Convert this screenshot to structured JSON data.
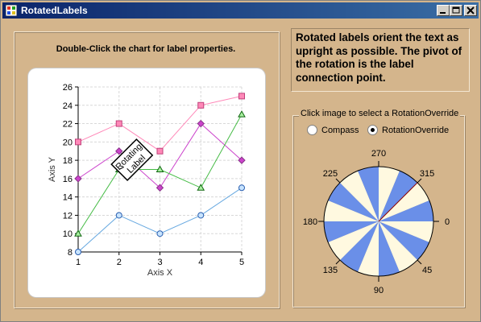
{
  "window": {
    "title": "RotatedLabels"
  },
  "chart_panel": {
    "instruction": "Double-Click the chart for label properties."
  },
  "info": {
    "text": "Rotated labels orient the text as upright as possible. The pivot of the rotation is the label connection point."
  },
  "rotation": {
    "legend": "Click image to select a RotationOverride",
    "options": [
      {
        "label": "Compass",
        "selected": false
      },
      {
        "label": "RotationOverride",
        "selected": true
      }
    ],
    "dial_labels": [
      "270",
      "315",
      "0",
      "45",
      "90",
      "135",
      "180",
      "225"
    ],
    "colors": {
      "blue": "#6a8fe8",
      "cream": "#fff9e0"
    }
  },
  "chart_data": {
    "type": "line",
    "x": [
      1,
      2,
      3,
      4,
      5
    ],
    "xlabel": "Axis X",
    "ylabel": "Axis Y",
    "ylim": [
      8,
      26
    ],
    "yticks": [
      8,
      10,
      12,
      14,
      16,
      18,
      20,
      22,
      24,
      26
    ],
    "xticks": [
      1,
      2,
      3,
      4,
      5
    ],
    "grid": true,
    "series": [
      {
        "values": [
          20,
          22,
          19,
          24,
          25
        ],
        "color": "#ff88b8",
        "marker": "square"
      },
      {
        "values": [
          16,
          19,
          15,
          22,
          18
        ],
        "color": "#cc44cc",
        "marker": "diamond"
      },
      {
        "values": [
          10,
          17,
          17,
          15,
          23
        ],
        "color": "#44bb44",
        "marker": "triangle"
      },
      {
        "values": [
          8,
          12,
          10,
          12,
          15
        ],
        "color": "#66a8e0",
        "marker": "circle"
      }
    ],
    "annotation": {
      "text_line1": "Rotating",
      "text_line2": "Label"
    }
  }
}
